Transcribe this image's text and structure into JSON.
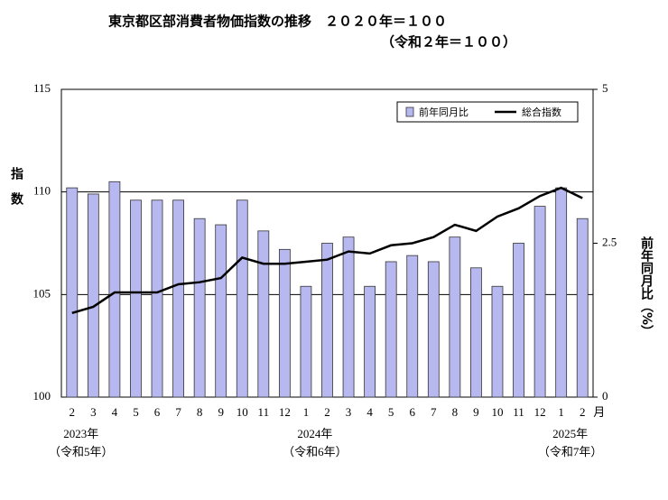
{
  "chart_data": {
    "type": "bar_line",
    "title": "東京都区部消費者物価指数の推移　２０２０年＝１００",
    "subtitle": "（令和２年＝１００）",
    "categories": [
      "2",
      "3",
      "4",
      "5",
      "6",
      "7",
      "8",
      "9",
      "10",
      "11",
      "12",
      "1",
      "2",
      "3",
      "4",
      "5",
      "6",
      "7",
      "8",
      "9",
      "10",
      "11",
      "12",
      "1",
      "2"
    ],
    "year_labels": [
      "2023年",
      null,
      null,
      null,
      null,
      null,
      null,
      null,
      null,
      null,
      null,
      "2024年",
      null,
      null,
      null,
      null,
      null,
      null,
      null,
      null,
      null,
      null,
      null,
      "2025年",
      null
    ],
    "era_labels": [
      "（令和5年）",
      null,
      null,
      null,
      null,
      null,
      null,
      null,
      null,
      null,
      null,
      "（令和6年）",
      null,
      null,
      null,
      null,
      null,
      null,
      null,
      null,
      null,
      null,
      null,
      "（令和7年）",
      null
    ],
    "x_unit": "月",
    "y_label": "指数",
    "y2_label": "前年同月比（%）",
    "ylim": [
      100,
      115
    ],
    "yticks": [
      100,
      105,
      110,
      115
    ],
    "y2lim": [
      0,
      5
    ],
    "y2ticks": [
      0,
      2.5,
      5
    ],
    "grid": true,
    "legend": "top-right",
    "series": [
      {
        "name": "前年同月比",
        "type": "bar",
        "axis": "y2",
        "color": "#b8b8f0",
        "values": [
          3.4,
          3.3,
          3.5,
          3.2,
          3.2,
          3.2,
          2.9,
          2.8,
          3.2,
          2.7,
          2.4,
          1.8,
          2.5,
          2.6,
          1.8,
          2.2,
          2.3,
          2.2,
          2.6,
          2.1,
          1.8,
          2.5,
          3.1,
          3.4,
          2.9
        ]
      },
      {
        "name": "総合指数",
        "type": "line",
        "color": "#000000",
        "values": [
          104.1,
          104.4,
          105.1,
          105.1,
          105.1,
          105.5,
          105.6,
          105.8,
          106.8,
          106.5,
          106.5,
          106.6,
          106.7,
          107.1,
          107.0,
          107.4,
          107.5,
          107.8,
          108.4,
          108.1,
          108.8,
          109.2,
          109.8,
          110.2,
          109.7
        ]
      }
    ]
  }
}
